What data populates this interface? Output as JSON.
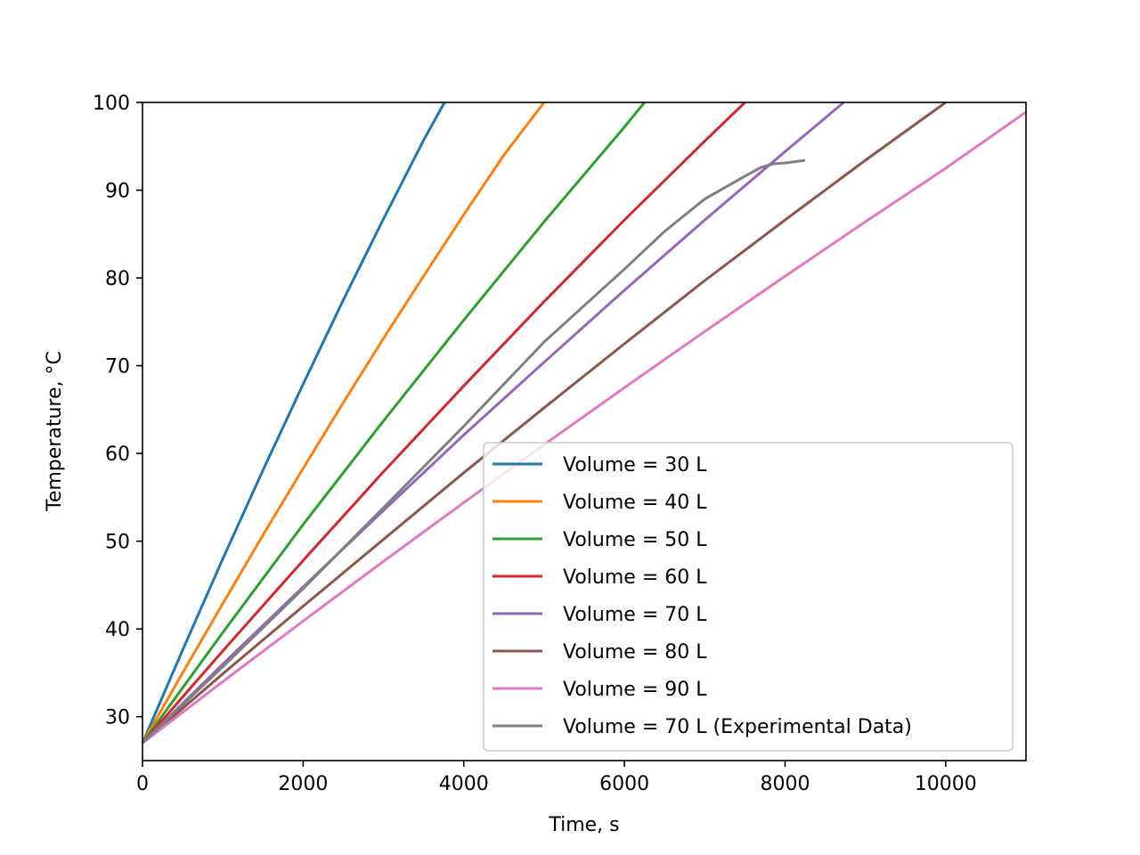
{
  "chart_data": {
    "type": "line",
    "title": "",
    "xlabel": "Time, s",
    "ylabel": "Temperature, °C",
    "xlim": [
      0,
      11000
    ],
    "ylim": [
      25,
      100
    ],
    "xticks": [
      0,
      2000,
      4000,
      6000,
      8000,
      10000
    ],
    "yticks": [
      30,
      40,
      50,
      60,
      70,
      80,
      90,
      100
    ],
    "grid": false,
    "legend_position": "lower-right",
    "series": [
      {
        "name": "Volume = 30 L",
        "color": "#1f77b4",
        "x": [
          0,
          500,
          1000,
          1500,
          2000,
          2500,
          3000,
          3500,
          3760
        ],
        "y": [
          27,
          37.6,
          48.0,
          58.1,
          67.9,
          77.5,
          86.7,
          95.7,
          100
        ]
      },
      {
        "name": "Volume = 40 L",
        "color": "#ff7f0e",
        "x": [
          0,
          500,
          1000,
          1500,
          2000,
          2500,
          3000,
          3500,
          4000,
          4500,
          5000
        ],
        "y": [
          27,
          35.0,
          42.9,
          50.7,
          58.3,
          65.8,
          73.1,
          80.2,
          87.2,
          94.0,
          100
        ]
      },
      {
        "name": "Volume = 50 L",
        "color": "#2ca02c",
        "x": [
          0,
          1000,
          2000,
          3000,
          4000,
          5000,
          6000,
          6250
        ],
        "y": [
          27,
          39.6,
          51.9,
          63.7,
          75.2,
          86.4,
          97.2,
          100
        ]
      },
      {
        "name": "Volume = 60 L",
        "color": "#d62728",
        "x": [
          0,
          1000,
          2000,
          3000,
          4000,
          5000,
          6000,
          7000,
          7500
        ],
        "y": [
          27,
          37.5,
          47.8,
          57.9,
          67.7,
          77.3,
          86.6,
          95.6,
          100
        ]
      },
      {
        "name": "Volume = 70 L",
        "color": "#9467bd",
        "x": [
          0,
          1000,
          2000,
          3000,
          4000,
          5000,
          6000,
          7000,
          8000,
          8730
        ],
        "y": [
          27,
          36.0,
          44.8,
          53.5,
          62.1,
          70.4,
          78.6,
          86.6,
          94.4,
          100
        ]
      },
      {
        "name": "Volume = 80 L",
        "color": "#8c564b",
        "x": [
          0,
          1000,
          2000,
          3000,
          4000,
          5000,
          6000,
          7000,
          8000,
          9000,
          10000
        ],
        "y": [
          27,
          34.9,
          42.6,
          50.2,
          57.8,
          65.2,
          72.5,
          79.7,
          86.6,
          93.4,
          100
        ]
      },
      {
        "name": "Volume = 90 L",
        "color": "#e377c2",
        "x": [
          0,
          1000,
          2000,
          3000,
          4000,
          5000,
          6000,
          7000,
          8000,
          9000,
          10000,
          11000
        ],
        "y": [
          27,
          34.0,
          40.9,
          47.7,
          54.4,
          61.0,
          67.5,
          73.9,
          80.2,
          86.4,
          92.5,
          98.9
        ]
      },
      {
        "name": "Volume = 70 L (Experimental Data)",
        "color": "#7f7f7f",
        "x": [
          0,
          1000,
          2000,
          3000,
          4000,
          5000,
          6000,
          6500,
          7000,
          7500,
          7700,
          7850,
          8000,
          8250
        ],
        "y": [
          27,
          35.7,
          44.6,
          53.8,
          63.1,
          72.7,
          81.0,
          85.3,
          89.0,
          91.6,
          92.6,
          93.0,
          93.1,
          93.4
        ]
      }
    ]
  }
}
